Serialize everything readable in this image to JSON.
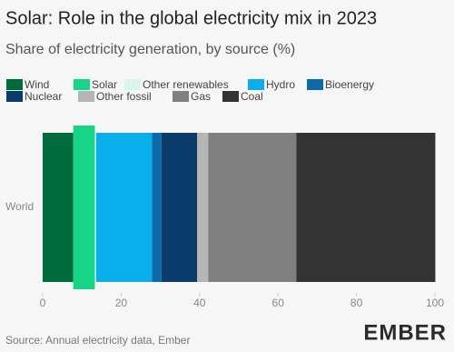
{
  "chart_data": {
    "type": "stacked-bar-horizontal",
    "title": "Solar: Role in the global electricity mix in 2023",
    "subtitle": "Share of electricity generation, by source (%)",
    "categories": [
      "World"
    ],
    "series": [
      {
        "name": "Wind",
        "color": "#006b3c",
        "values": [
          7.8
        ]
      },
      {
        "name": "Solar",
        "color": "#17d486",
        "values": [
          5.5
        ]
      },
      {
        "name": "Other renewables",
        "color": "#d9f6ea",
        "values": [
          0.3
        ]
      },
      {
        "name": "Hydro",
        "color": "#0aaeeb",
        "values": [
          14.3
        ]
      },
      {
        "name": "Bioenergy",
        "color": "#0c6aa8",
        "values": [
          2.4
        ]
      },
      {
        "name": "Nuclear",
        "color": "#0a3c6b",
        "values": [
          9.1
        ]
      },
      {
        "name": "Other fossil",
        "color": "#b5b5b5",
        "values": [
          2.8
        ]
      },
      {
        "name": "Gas",
        "color": "#808080",
        "values": [
          22.5
        ]
      },
      {
        "name": "Coal",
        "color": "#333333",
        "values": [
          35.4
        ]
      }
    ],
    "highlight_series": 1,
    "xlim": [
      0,
      100
    ],
    "xticks": [
      0,
      20,
      40,
      60,
      80,
      100
    ],
    "source": "Source: Annual electricity data, Ember",
    "logo": "EMBER"
  }
}
